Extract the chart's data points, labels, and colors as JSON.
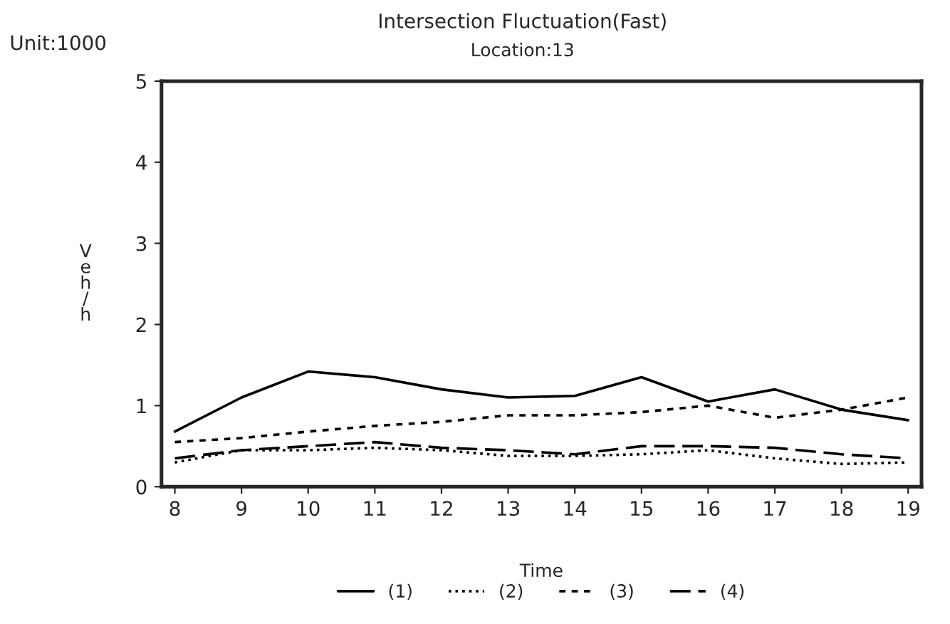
{
  "chart_data": {
    "type": "line",
    "title": "Intersection Fluctuation(Fast)",
    "subtitle": "Location:13",
    "xlabel": "Time",
    "ylabel": "V\ne\nh\n/\nh",
    "annotations": [
      "Unit:1000"
    ],
    "x": [
      8,
      9,
      10,
      11,
      12,
      13,
      14,
      15,
      16,
      17,
      18,
      19
    ],
    "xlim": [
      7.8,
      19.2
    ],
    "xticks": [
      8,
      9,
      10,
      11,
      12,
      13,
      14,
      15,
      16,
      17,
      18,
      19
    ],
    "ylim": [
      0,
      5
    ],
    "yticks": [
      0,
      1,
      2,
      3,
      4,
      5
    ],
    "grid": false,
    "legend": "bottom",
    "series": [
      {
        "name": "(1)",
        "color": "#000000",
        "line_style": "solid",
        "values": [
          0.68,
          1.1,
          1.42,
          1.35,
          1.2,
          1.1,
          1.12,
          1.35,
          1.05,
          1.2,
          0.95,
          0.82
        ]
      },
      {
        "name": "(2)",
        "color": "#000000",
        "line_style": "dotted",
        "values": [
          0.3,
          0.45,
          0.45,
          0.48,
          0.45,
          0.38,
          0.38,
          0.4,
          0.45,
          0.35,
          0.28,
          0.3
        ]
      },
      {
        "name": "(3)",
        "color": "#000000",
        "line_style": "dashed",
        "values": [
          0.55,
          0.6,
          0.68,
          0.75,
          0.8,
          0.88,
          0.88,
          0.92,
          1.0,
          0.85,
          0.95,
          1.1
        ]
      },
      {
        "name": "(4)",
        "color": "#000000",
        "line_style": "dashed",
        "values": [
          0.35,
          0.45,
          0.5,
          0.55,
          0.48,
          0.45,
          0.4,
          0.5,
          0.5,
          0.48,
          0.4,
          0.35
        ]
      }
    ]
  }
}
